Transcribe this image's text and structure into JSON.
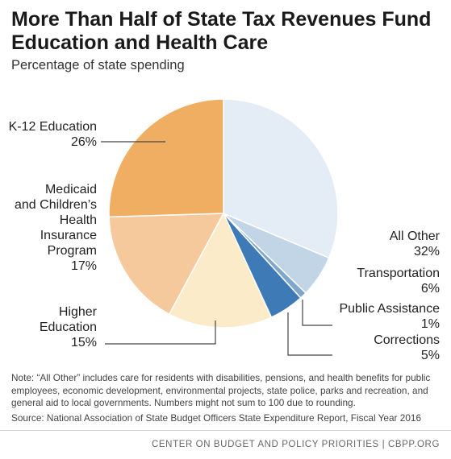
{
  "title": "More Than Half of State Tax Revenues Fund Education and Health Care",
  "subtitle": "Percentage of state spending",
  "chart_data": {
    "type": "pie",
    "title": "More Than Half of State Tax Revenues Fund Education and Health Care",
    "subtitle": "Percentage of state spending",
    "slices": [
      {
        "label": "All Other",
        "value": 32,
        "display": "32%",
        "color": "#e4edf6"
      },
      {
        "label": "Transportation",
        "value": 6,
        "display": "6%",
        "color": "#c1d5e7"
      },
      {
        "label": "Public Assistance",
        "value": 1,
        "display": "1%",
        "color": "#7fa7cc"
      },
      {
        "label": "Corrections",
        "value": 5,
        "display": "5%",
        "color": "#3e7bb6"
      },
      {
        "label": "Higher Education",
        "value": 15,
        "display": "15%",
        "color": "#fcebc9"
      },
      {
        "label": "Medicaid and Children's Health Insurance Program",
        "value": 17,
        "display": "17%",
        "color": "#f5c99c"
      },
      {
        "label": "K-12 Education",
        "value": 26,
        "display": "26%",
        "color": "#efae61"
      }
    ]
  },
  "labels": {
    "k12_line1": "K-12 Education",
    "k12_pct": "26%",
    "medicaid_line1": "Medicaid",
    "medicaid_line2": "and Children’s",
    "medicaid_line3": "Health",
    "medicaid_line4": "Insurance",
    "medicaid_line5": "Program",
    "medicaid_pct": "17%",
    "higher_line1": "Higher",
    "higher_line2": "Education",
    "higher_pct": "15%",
    "allother_line1": "All Other",
    "allother_pct": "32%",
    "transport_line1": "Transportation",
    "transport_pct": "6%",
    "pubassist_line1": "Public Assistance",
    "pubassist_pct": "1%",
    "corrections_line1": "Corrections",
    "corrections_pct": "5%"
  },
  "note": "Note: “All Other” includes care for residents with disabilities, pensions, and health benefits for public employees, economic development, environmental projects, state police, parks and recreation, and general aid to local governments. Numbers might not sum to 100 due to rounding.",
  "source": "Source: National Association of State Budget Officers State Expenditure Report, Fiscal Year 2016",
  "footer": "CENTER ON BUDGET AND POLICY PRIORITIES | CBPP.ORG"
}
